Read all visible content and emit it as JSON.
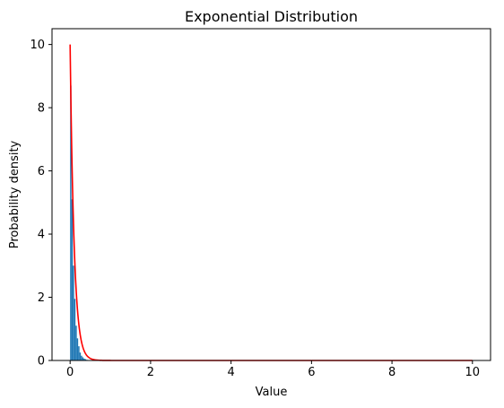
{
  "chart_data": {
    "type": "bar",
    "title": "Exponential Distribution",
    "xlabel": "Value",
    "ylabel": "Probability density",
    "xlim": [
      -0.45,
      10.45
    ],
    "ylim": [
      0,
      10.5
    ],
    "xticks": [
      0,
      2,
      4,
      6,
      8,
      10
    ],
    "yticks": [
      0,
      2,
      4,
      6,
      8,
      10
    ],
    "grid": false,
    "histogram": {
      "bin_width": 0.0333,
      "x_start": 0,
      "values": [
        8.7,
        5.1,
        3.0,
        1.95,
        1.1,
        0.7,
        0.45,
        0.25,
        0.15,
        0.1,
        0.06,
        0.04,
        0.02,
        0.01,
        0.01
      ],
      "color": "#1f77b4"
    },
    "series": [
      {
        "type": "line",
        "color": "#ff0000",
        "rate": 10,
        "x_range": [
          0,
          10
        ]
      }
    ]
  }
}
